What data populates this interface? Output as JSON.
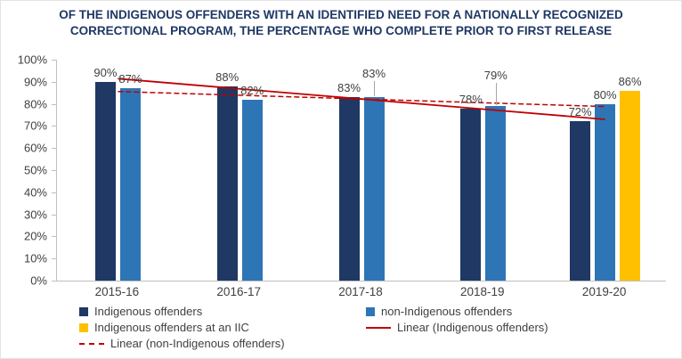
{
  "title": "OF THE INDIGENOUS OFFENDERS WITH AN IDENTIFIED NEED FOR A NATIONALLY RECOGNIZED CORRECTIONAL PROGRAM, THE PERCENTAGE WHO COMPLETE PRIOR TO FIRST RELEASE",
  "chart_data": {
    "type": "bar",
    "categories": [
      "2015-16",
      "2016-17",
      "2017-18",
      "2018-19",
      "2019-20"
    ],
    "series": [
      {
        "name": "Indigenous offenders",
        "color": "#1F3864",
        "values": [
          90,
          88,
          83,
          78,
          72
        ]
      },
      {
        "name": "non-Indigenous offenders",
        "color": "#2E75B6",
        "values": [
          87,
          82,
          83,
          79,
          80
        ]
      },
      {
        "name": "Indigenous offenders at an IIC",
        "color": "#FFC000",
        "values": [
          null,
          null,
          null,
          null,
          86
        ]
      }
    ],
    "trendlines": [
      {
        "name": "Linear (Indigenous offenders)",
        "series": "Indigenous offenders",
        "color": "#C00000",
        "style": "solid"
      },
      {
        "name": "Linear (non-Indigenous offenders)",
        "series": "non-Indigenous offenders",
        "color": "#C00000",
        "style": "dashed"
      }
    ],
    "ylim": [
      0,
      100
    ],
    "ytick_step": 10,
    "ytick_suffix": "%",
    "data_label_suffix": "%",
    "grid": false,
    "legend_position": "bottom-left",
    "axis_color": "#BFBFBF",
    "text_color": "#404040",
    "title_color": "#1F3864",
    "callouts": [
      {
        "series": 1,
        "index": 2,
        "lift": 16
      },
      {
        "series": 1,
        "index": 3,
        "lift": 24
      }
    ]
  }
}
